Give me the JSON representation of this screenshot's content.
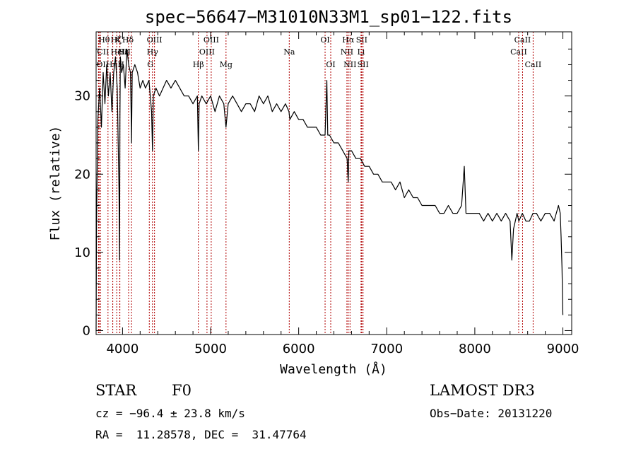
{
  "chart_data": {
    "type": "line",
    "title": "spec−56647−M31010N33M1_sp01−122.fits",
    "xlabel": "Wavelength (Å)",
    "ylabel": "Flux (relative)",
    "xlim": [
      3700,
      9100
    ],
    "ylim": [
      -0.5,
      38.2
    ],
    "xticks": [
      4000,
      5000,
      6000,
      7000,
      8000,
      9000
    ],
    "yticks": [
      0,
      10,
      20,
      30
    ],
    "series": [
      {
        "name": "flux",
        "x": [
          3700,
          3705,
          3720,
          3740,
          3760,
          3780,
          3800,
          3820,
          3840,
          3860,
          3880,
          3900,
          3920,
          3940,
          3960,
          3966,
          3970,
          3975,
          3990,
          4010,
          4030,
          4050,
          4070,
          4090,
          4100,
          4102,
          4110,
          4140,
          4170,
          4200,
          4230,
          4260,
          4300,
          4330,
          4340,
          4350,
          4380,
          4420,
          4460,
          4500,
          4550,
          4600,
          4650,
          4700,
          4750,
          4800,
          4850,
          4861,
          4870,
          4900,
          4950,
          5000,
          5050,
          5100,
          5150,
          5175,
          5200,
          5250,
          5300,
          5350,
          5400,
          5450,
          5500,
          5550,
          5600,
          5650,
          5700,
          5750,
          5800,
          5850,
          5890,
          5900,
          5950,
          6000,
          6050,
          6100,
          6150,
          6200,
          6250,
          6300,
          6320,
          6330,
          6350,
          6400,
          6450,
          6500,
          6550,
          6563,
          6570,
          6600,
          6650,
          6700,
          6750,
          6800,
          6850,
          6900,
          6950,
          7000,
          7050,
          7100,
          7150,
          7200,
          7250,
          7300,
          7350,
          7400,
          7450,
          7500,
          7550,
          7600,
          7650,
          7700,
          7750,
          7800,
          7850,
          7880,
          7900,
          7950,
          8000,
          8050,
          8100,
          8150,
          8200,
          8250,
          8300,
          8350,
          8400,
          8420,
          8440,
          8460,
          8480,
          8500,
          8540,
          8580,
          8620,
          8660,
          8700,
          8750,
          8800,
          8850,
          8900,
          8950,
          8970,
          8980,
          8990,
          9000
        ],
        "y": [
          0,
          14,
          27,
          31,
          26,
          33,
          29,
          34,
          30,
          33,
          28,
          33,
          35,
          31,
          18,
          9,
          27,
          35,
          33,
          34,
          31,
          36,
          34,
          33,
          26,
          24,
          33,
          34,
          33,
          31,
          32,
          31,
          32,
          28,
          23,
          30,
          31,
          30,
          31,
          32,
          31,
          32,
          31,
          30,
          30,
          29,
          30,
          23,
          29,
          30,
          29,
          30,
          28,
          30,
          29,
          26,
          29,
          30,
          29,
          28,
          29,
          29,
          28,
          30,
          29,
          30,
          28,
          29,
          28,
          29,
          28,
          27,
          28,
          27,
          27,
          26,
          26,
          26,
          25,
          25,
          32,
          25,
          25,
          24,
          24,
          23,
          22,
          19,
          23,
          23,
          22,
          22,
          21,
          21,
          20,
          20,
          19,
          19,
          19,
          18,
          19,
          17,
          18,
          17,
          17,
          16,
          16,
          16,
          16,
          15,
          15,
          16,
          15,
          15,
          16,
          21,
          15,
          15,
          15,
          15,
          14,
          15,
          14,
          15,
          14,
          15,
          14,
          9,
          13,
          14,
          15,
          14,
          15,
          14,
          14,
          15,
          15,
          14,
          15,
          15,
          14,
          16,
          15,
          12,
          8,
          2
        ]
      }
    ],
    "lines": [
      {
        "name": "OII",
        "wave": 3727,
        "row": 3,
        "align": "left"
      },
      {
        "name": "CII",
        "wave": 3734,
        "row": 2,
        "align": "left"
      },
      {
        "name": "Hθ",
        "wave": 3750,
        "row": 1,
        "align": "left"
      },
      {
        "name": "Hη",
        "wave": 3835,
        "row": 3,
        "align": "left"
      },
      {
        "name": "Hζ",
        "wave": 3889,
        "row": 1,
        "align": "left"
      },
      {
        "name": "HeI",
        "wave": 3889,
        "row": 2,
        "align": "left"
      },
      {
        "name": "K",
        "wave": 3934,
        "row": 1,
        "align": "left"
      },
      {
        "name": "H",
        "wave": 3968,
        "row": 3,
        "align": "left"
      },
      {
        "name": "Hε",
        "wave": 3970,
        "row": 2,
        "align": "left"
      },
      {
        "name": "SII",
        "wave": 4069,
        "row": 2,
        "align": "right"
      },
      {
        "name": "Hδ",
        "wave": 4102,
        "row": 1,
        "align": "right"
      },
      {
        "name": "G",
        "wave": 4304,
        "row": 3,
        "align": "left"
      },
      {
        "name": "Hγ",
        "wave": 4340,
        "row": 2,
        "align": "center"
      },
      {
        "name": "OIII",
        "wave": 4363,
        "row": 1,
        "align": "center"
      },
      {
        "name": "Hβ",
        "wave": 4861,
        "row": 3,
        "align": "center"
      },
      {
        "name": "OIII",
        "wave": 4959,
        "row": 2,
        "align": "center"
      },
      {
        "name": "OIII",
        "wave": 5007,
        "row": 1,
        "align": "center"
      },
      {
        "name": "Mg",
        "wave": 5175,
        "row": 3,
        "align": "center"
      },
      {
        "name": "Na",
        "wave": 5893,
        "row": 2,
        "align": "center"
      },
      {
        "name": "OI",
        "wave": 6300,
        "row": 1,
        "align": "center"
      },
      {
        "name": "OI",
        "wave": 6364,
        "row": 3,
        "align": "center"
      },
      {
        "name": "NII",
        "wave": 6548,
        "row": 2,
        "align": "center"
      },
      {
        "name": "Hα",
        "wave": 6563,
        "row": 1,
        "align": "center"
      },
      {
        "name": "NII",
        "wave": 6583,
        "row": 3,
        "align": "center"
      },
      {
        "name": "Li",
        "wave": 6708,
        "row": 2,
        "align": "center"
      },
      {
        "name": "SII",
        "wave": 6716,
        "row": 1,
        "align": "center"
      },
      {
        "name": "SII",
        "wave": 6731,
        "row": 3,
        "align": "center"
      },
      {
        "name": "CaII",
        "wave": 8498,
        "row": 2,
        "align": "center"
      },
      {
        "name": "CaII",
        "wave": 8542,
        "row": 1,
        "align": "center"
      },
      {
        "name": "CaII",
        "wave": 8662,
        "row": 3,
        "align": "center"
      }
    ],
    "colors": {
      "spectrum": "#000000",
      "lines": "#b00000",
      "axes": "#000000"
    }
  },
  "info": {
    "class": "STAR",
    "subclass": "F0",
    "survey": "LAMOST DR3",
    "cz": "cz = −96.4 ± 23.8 km/s",
    "obs_date": "Obs−Date: 20131220",
    "radec": "RA =  11.28578, DEC =  31.47764"
  }
}
